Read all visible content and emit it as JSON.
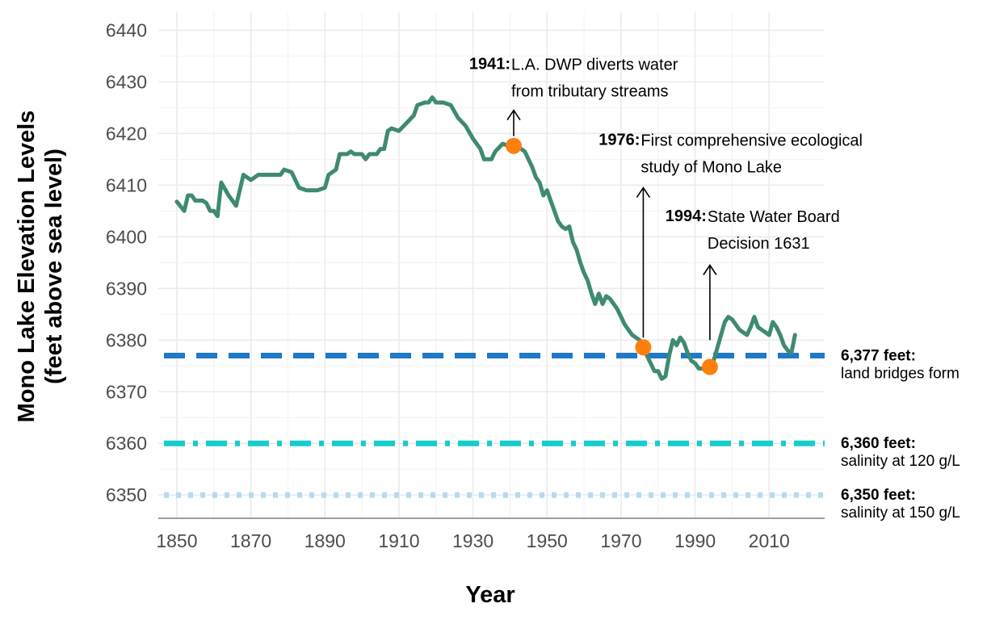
{
  "chart_data": {
    "type": "line",
    "xlabel": "Year",
    "ylabel_line1": "Mono Lake Elevation Levels",
    "ylabel_line2": "(feet above sea level)",
    "xlim": [
      1845,
      2025
    ],
    "ylim": [
      6345.5,
      6443.5
    ],
    "x_ticks": [
      1850,
      1870,
      1890,
      1910,
      1930,
      1950,
      1970,
      1990,
      2010
    ],
    "y_ticks": [
      6350,
      6360,
      6370,
      6380,
      6390,
      6400,
      6410,
      6420,
      6430,
      6440
    ],
    "x_tick_labels": [
      "1850",
      "1870",
      "1890",
      "1910",
      "1930",
      "1950",
      "1970",
      "1990",
      "2010"
    ],
    "y_tick_labels": [
      "6350",
      "6360",
      "6370",
      "6380",
      "6390",
      "6400",
      "6410",
      "6420",
      "6430",
      "6440"
    ],
    "grid": true,
    "series": [
      {
        "color": "#3e8a72",
        "points": [
          [
            1850,
            6406.8
          ],
          [
            1852,
            6405.0
          ],
          [
            1853,
            6408.0
          ],
          [
            1854,
            6408.0
          ],
          [
            1855,
            6407.0
          ],
          [
            1857,
            6407.0
          ],
          [
            1858,
            6406.5
          ],
          [
            1859,
            6405.0
          ],
          [
            1860,
            6405.0
          ],
          [
            1861,
            6404.0
          ],
          [
            1862,
            6410.5
          ],
          [
            1864,
            6408.0
          ],
          [
            1866,
            6406.0
          ],
          [
            1868,
            6412.0
          ],
          [
            1870,
            6411.0
          ],
          [
            1872,
            6412.0
          ],
          [
            1874,
            6412.0
          ],
          [
            1876,
            6412.0
          ],
          [
            1878,
            6412.0
          ],
          [
            1879,
            6413.0
          ],
          [
            1881,
            6412.5
          ],
          [
            1883,
            6409.5
          ],
          [
            1885,
            6409.0
          ],
          [
            1888,
            6409.0
          ],
          [
            1890,
            6409.5
          ],
          [
            1891,
            6412.0
          ],
          [
            1893,
            6413.0
          ],
          [
            1894,
            6416.0
          ],
          [
            1896,
            6416.0
          ],
          [
            1897,
            6416.5
          ],
          [
            1898,
            6416.0
          ],
          [
            1900,
            6416.0
          ],
          [
            1901,
            6415.0
          ],
          [
            1902,
            6416.0
          ],
          [
            1904,
            6416.0
          ],
          [
            1905,
            6417.0
          ],
          [
            1906,
            6417.0
          ],
          [
            1907,
            6420.5
          ],
          [
            1908,
            6421.0
          ],
          [
            1910,
            6420.5
          ],
          [
            1912,
            6422.0
          ],
          [
            1914,
            6423.5
          ],
          [
            1915,
            6425.5
          ],
          [
            1917,
            6426.0
          ],
          [
            1918,
            6426.0
          ],
          [
            1919,
            6427.0
          ],
          [
            1920,
            6426.0
          ],
          [
            1922,
            6426.0
          ],
          [
            1924,
            6425.5
          ],
          [
            1926,
            6423.0
          ],
          [
            1928,
            6421.5
          ],
          [
            1930,
            6419.0
          ],
          [
            1932,
            6417.0
          ],
          [
            1933,
            6415.0
          ],
          [
            1935,
            6415.0
          ],
          [
            1936,
            6416.5
          ],
          [
            1938,
            6418.0
          ],
          [
            1940,
            6417.5
          ],
          [
            1941,
            6417.6
          ],
          [
            1943,
            6417.0
          ],
          [
            1944,
            6416.5
          ],
          [
            1945,
            6415.0
          ],
          [
            1946,
            6413.5
          ],
          [
            1947,
            6411.5
          ],
          [
            1948,
            6410.5
          ],
          [
            1949,
            6408.0
          ],
          [
            1950,
            6409.0
          ],
          [
            1951,
            6407.0
          ],
          [
            1952,
            6405.0
          ],
          [
            1953,
            6403.0
          ],
          [
            1954,
            6402.0
          ],
          [
            1955,
            6401.5
          ],
          [
            1956,
            6402.0
          ],
          [
            1957,
            6399.0
          ],
          [
            1958,
            6397.5
          ],
          [
            1959,
            6395.0
          ],
          [
            1960,
            6393.0
          ],
          [
            1961,
            6391.5
          ],
          [
            1962,
            6389.0
          ],
          [
            1963,
            6387.0
          ],
          [
            1964,
            6389.0
          ],
          [
            1965,
            6387.0
          ],
          [
            1966,
            6388.5
          ],
          [
            1967,
            6388.0
          ],
          [
            1968,
            6387.0
          ],
          [
            1969,
            6386.0
          ],
          [
            1970,
            6384.5
          ],
          [
            1971,
            6383.0
          ],
          [
            1972,
            6382.0
          ],
          [
            1973,
            6381.0
          ],
          [
            1974,
            6380.5
          ],
          [
            1975,
            6380.0
          ],
          [
            1976,
            6378.6
          ],
          [
            1977,
            6377.0
          ],
          [
            1978,
            6375.5
          ],
          [
            1979,
            6374.0
          ],
          [
            1980,
            6374.0
          ],
          [
            1981,
            6372.5
          ],
          [
            1982,
            6373.0
          ],
          [
            1983,
            6377.0
          ],
          [
            1984,
            6380.0
          ],
          [
            1985,
            6379.0
          ],
          [
            1986,
            6380.5
          ],
          [
            1987,
            6379.5
          ],
          [
            1988,
            6377.5
          ],
          [
            1989,
            6376.0
          ],
          [
            1990,
            6375.5
          ],
          [
            1991,
            6374.5
          ],
          [
            1992,
            6374.5
          ],
          [
            1993,
            6374.0
          ],
          [
            1994,
            6374.8
          ],
          [
            1995,
            6376.0
          ],
          [
            1996,
            6378.5
          ],
          [
            1997,
            6381.0
          ],
          [
            1998,
            6383.5
          ],
          [
            1999,
            6384.5
          ],
          [
            2000,
            6384.0
          ],
          [
            2001,
            6383.0
          ],
          [
            2002,
            6382.0
          ],
          [
            2003,
            6381.5
          ],
          [
            2004,
            6381.0
          ],
          [
            2005,
            6382.5
          ],
          [
            2006,
            6384.5
          ],
          [
            2007,
            6382.5
          ],
          [
            2008,
            6382.0
          ],
          [
            2009,
            6381.5
          ],
          [
            2010,
            6381.0
          ],
          [
            2011,
            6383.5
          ],
          [
            2012,
            6382.5
          ],
          [
            2013,
            6381.0
          ],
          [
            2014,
            6379.0
          ],
          [
            2015,
            6378.0
          ],
          [
            2016,
            6377.5
          ],
          [
            2017,
            6381.0
          ]
        ]
      }
    ],
    "highlight_points": [
      {
        "x": 1941,
        "y": 6417.6,
        "color": "#ff7f0e"
      },
      {
        "x": 1976,
        "y": 6378.6,
        "color": "#ff7f0e"
      },
      {
        "x": 1994,
        "y": 6374.8,
        "color": "#ff7f0e"
      }
    ],
    "annotations": [
      {
        "year_label": "1941:",
        "line1": "L.A. DWP diverts water",
        "line2": "from tributary streams",
        "x": 1941,
        "y_text": 6432.5,
        "arrow_from": 6419.5,
        "arrow_to": 6424.5
      },
      {
        "year_label": "1976:",
        "line1": "First comprehensive ecological",
        "line2": "study of Mono Lake",
        "x": 1976,
        "y_text": 6417.8,
        "arrow_from": 6380.5,
        "arrow_to": 6409.5
      },
      {
        "year_label": "1994:",
        "line1": "State Water Board",
        "line2": "Decision 1631",
        "x": 1994,
        "y_text": 6403.0,
        "arrow_from": 6380.0,
        "arrow_to": 6394.5
      }
    ],
    "reference_lines": [
      {
        "y": 6377,
        "label_bold": "6,377 feet:",
        "label_text": "land bridges form",
        "color": "#1f78c8",
        "style": "dashed"
      },
      {
        "y": 6360,
        "label_bold": "6,360 feet:",
        "label_text": "salinity at 120 g/L",
        "color": "#17cccc",
        "style": "dashdot"
      },
      {
        "y": 6350,
        "label_bold": "6,350 feet:",
        "label_text": "salinity at 150 g/L",
        "color": "#b3dcf2",
        "style": "dotted"
      }
    ]
  }
}
